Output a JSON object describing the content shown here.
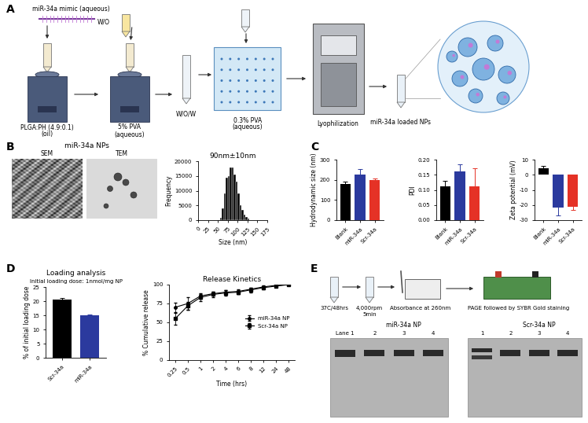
{
  "panel_labels": [
    "A",
    "B",
    "C",
    "D",
    "E"
  ],
  "panel_a": {
    "mimic": "miR-34a mimic (aqueous)",
    "oil": [
      "PLGA:PH (4.9:0.1)",
      "(oil)"
    ],
    "wo": "W/O",
    "pva5": [
      "5% PVA",
      "(aqueous)"
    ],
    "wow": "W/O/W",
    "pva03": [
      "0.3% PVA",
      "(aqueous)"
    ],
    "lyo": "Lyophilization",
    "product": "miR-34a loaded NPs"
  },
  "panel_b": {
    "title": "miR-34a NPs",
    "images": [
      "SEM",
      "TEM"
    ]
  },
  "panel_e": {
    "incubation": "37C/48hrs",
    "spin": [
      "4,000rpm",
      "5min"
    ],
    "absorbance": "Absorbance at 260nm",
    "page": "PAGE followed by SYBR Gold staining",
    "gels": [
      {
        "name": "miR-34a NP",
        "lanes": [
          "Lane 1",
          "2",
          "3",
          "4"
        ]
      },
      {
        "name": "Scr-34a NP",
        "lanes": [
          "1",
          "2",
          "3",
          "4"
        ]
      }
    ]
  },
  "chart_data": [
    {
      "type": "histogram",
      "title": "90nm±10nm",
      "x_label": "Size (nm)",
      "y_label": "Frequency",
      "bins": [
        55,
        60,
        65,
        70,
        75,
        80,
        85,
        90,
        95,
        100,
        105,
        110,
        115,
        120,
        125,
        130
      ],
      "counts": [
        800,
        4000,
        9000,
        14500,
        15000,
        18000,
        18000,
        15500,
        13000,
        9000,
        5000,
        3500,
        2000,
        1200,
        600
      ],
      "color": "#000000",
      "xlim": [
        0,
        175
      ],
      "xticks": [
        0,
        25,
        50,
        75,
        100,
        125,
        150,
        175
      ],
      "ylim": [
        0,
        20000
      ],
      "yticks": [
        0,
        5000,
        10000,
        15000,
        20000
      ]
    },
    {
      "type": "bar",
      "y_label": "Hydrodynamic size (nm)",
      "categories": [
        "Blank",
        "miR-34a",
        "Scr-34a"
      ],
      "values": [
        180,
        225,
        197
      ],
      "error": [
        12,
        28,
        10
      ],
      "colors": [
        "#000000",
        "#2b3a9e",
        "#e53226"
      ],
      "ylim": [
        0,
        300
      ],
      "yticks": [
        0,
        100,
        200,
        300
      ]
    },
    {
      "type": "bar",
      "y_label": "PDI",
      "categories": [
        "Blank",
        "miR-34a",
        "Scr-34a"
      ],
      "values": [
        0.112,
        0.16,
        0.112
      ],
      "error": [
        0.017,
        0.025,
        0.06
      ],
      "colors": [
        "#000000",
        "#2b3a9e",
        "#e53226"
      ],
      "ylim": [
        0,
        0.2
      ],
      "yticks": [
        {
          "value": 0,
          "label": "0.00"
        },
        {
          "value": 0.05,
          "label": "0.05"
        },
        {
          "value": 0.1,
          "label": "0.10"
        },
        {
          "value": 0.15,
          "label": "0.15"
        },
        {
          "value": 0.2,
          "label": "0.20"
        }
      ]
    },
    {
      "type": "bar",
      "y_label": "Zeta potential (mV)",
      "categories": [
        "Blank",
        "miR-34a",
        "Scr-34a"
      ],
      "values": [
        4.5,
        -21.5,
        -21
      ],
      "error": [
        1.2,
        5.5,
        2.5
      ],
      "colors": [
        "#000000",
        "#2b3a9e",
        "#e53226"
      ],
      "ylim": [
        -30,
        10
      ],
      "yticks": [
        -30,
        -20,
        -10,
        0,
        10
      ]
    },
    {
      "type": "bar",
      "title": "Loading analysis",
      "annotation": "Initial loading dose: 1nmol/mg NP",
      "y_label": "% of initial loading dose",
      "categories": [
        "Scr-34a",
        "miR-34a"
      ],
      "values": [
        20.5,
        15.1
      ],
      "error": [
        0.6,
        0.3
      ],
      "colors": [
        "#000000",
        "#2b3a9e"
      ],
      "ylim": [
        0,
        25
      ],
      "yticks": [
        0,
        5,
        10,
        15,
        20,
        25
      ]
    },
    {
      "type": "line",
      "title": "Release Kinetics",
      "x_label": "Time (hrs)",
      "y_label": "% Cumulative release",
      "categories": [
        "0.25",
        "0.5",
        "1",
        "2",
        "4",
        "6",
        "8",
        "12",
        "24",
        "48"
      ],
      "series": [
        {
          "name": "miR-34a NP",
          "color": "#000000",
          "marker": "circle",
          "values": [
            70,
            75,
            85,
            88,
            90,
            91,
            94,
            97,
            99,
            100
          ],
          "error": [
            6,
            8,
            4,
            3,
            3,
            3,
            2,
            2,
            1,
            0.5
          ]
        },
        {
          "name": "Scr-34a NP",
          "color": "#000000",
          "marker": "square",
          "values": [
            55,
            72,
            83,
            87,
            89,
            90,
            93,
            96,
            98,
            100
          ],
          "error": [
            8,
            5,
            5,
            4,
            4,
            3,
            3,
            2,
            1,
            0.5
          ]
        }
      ],
      "ylim": [
        0,
        100
      ],
      "yticks": [
        0,
        25,
        50,
        75,
        100
      ],
      "legend": "center right"
    }
  ]
}
